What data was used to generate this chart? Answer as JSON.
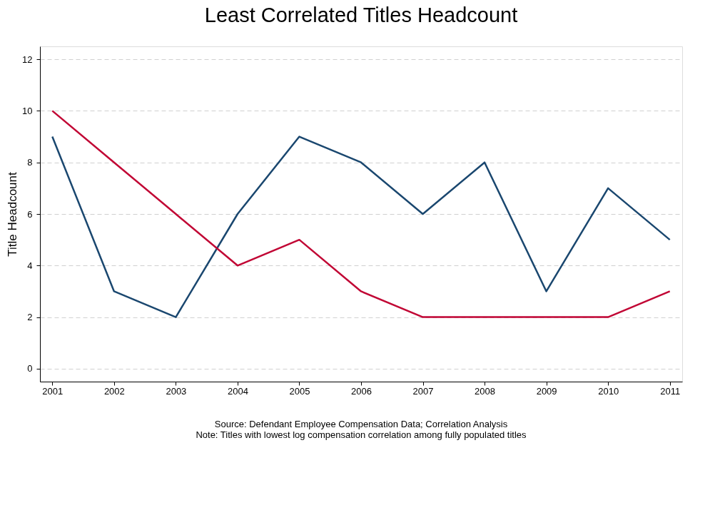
{
  "chart_data": {
    "type": "line",
    "title": "Least Correlated Titles Headcount",
    "ylabel": "Title Headcount",
    "x": [
      2001,
      2002,
      2003,
      2004,
      2005,
      2006,
      2007,
      2008,
      2009,
      2010,
      2011
    ],
    "series": [
      {
        "color": "#1a476f",
        "values": [
          9,
          3,
          2,
          6,
          9,
          8,
          6,
          8,
          3,
          7,
          5
        ]
      },
      {
        "color": "#c10534",
        "values": [
          10,
          8,
          6,
          4,
          5,
          3,
          2,
          2,
          2,
          2,
          3
        ]
      }
    ],
    "xlim": [
      2000.8,
      2011.2
    ],
    "xticks": [
      2001,
      2002,
      2003,
      2004,
      2005,
      2006,
      2007,
      2008,
      2009,
      2010,
      2011
    ],
    "ylim": [
      -0.5,
      12.5
    ],
    "yticks": [
      0,
      2,
      4,
      6,
      8,
      10,
      12
    ],
    "grid": "y",
    "line_style": "solid",
    "marker": "none",
    "annotations": [
      "Source: Defendant Employee Compensation Data; Correlation Analysis",
      "Note: Titles with lowest log compensation correlation among fully populated titles"
    ]
  }
}
